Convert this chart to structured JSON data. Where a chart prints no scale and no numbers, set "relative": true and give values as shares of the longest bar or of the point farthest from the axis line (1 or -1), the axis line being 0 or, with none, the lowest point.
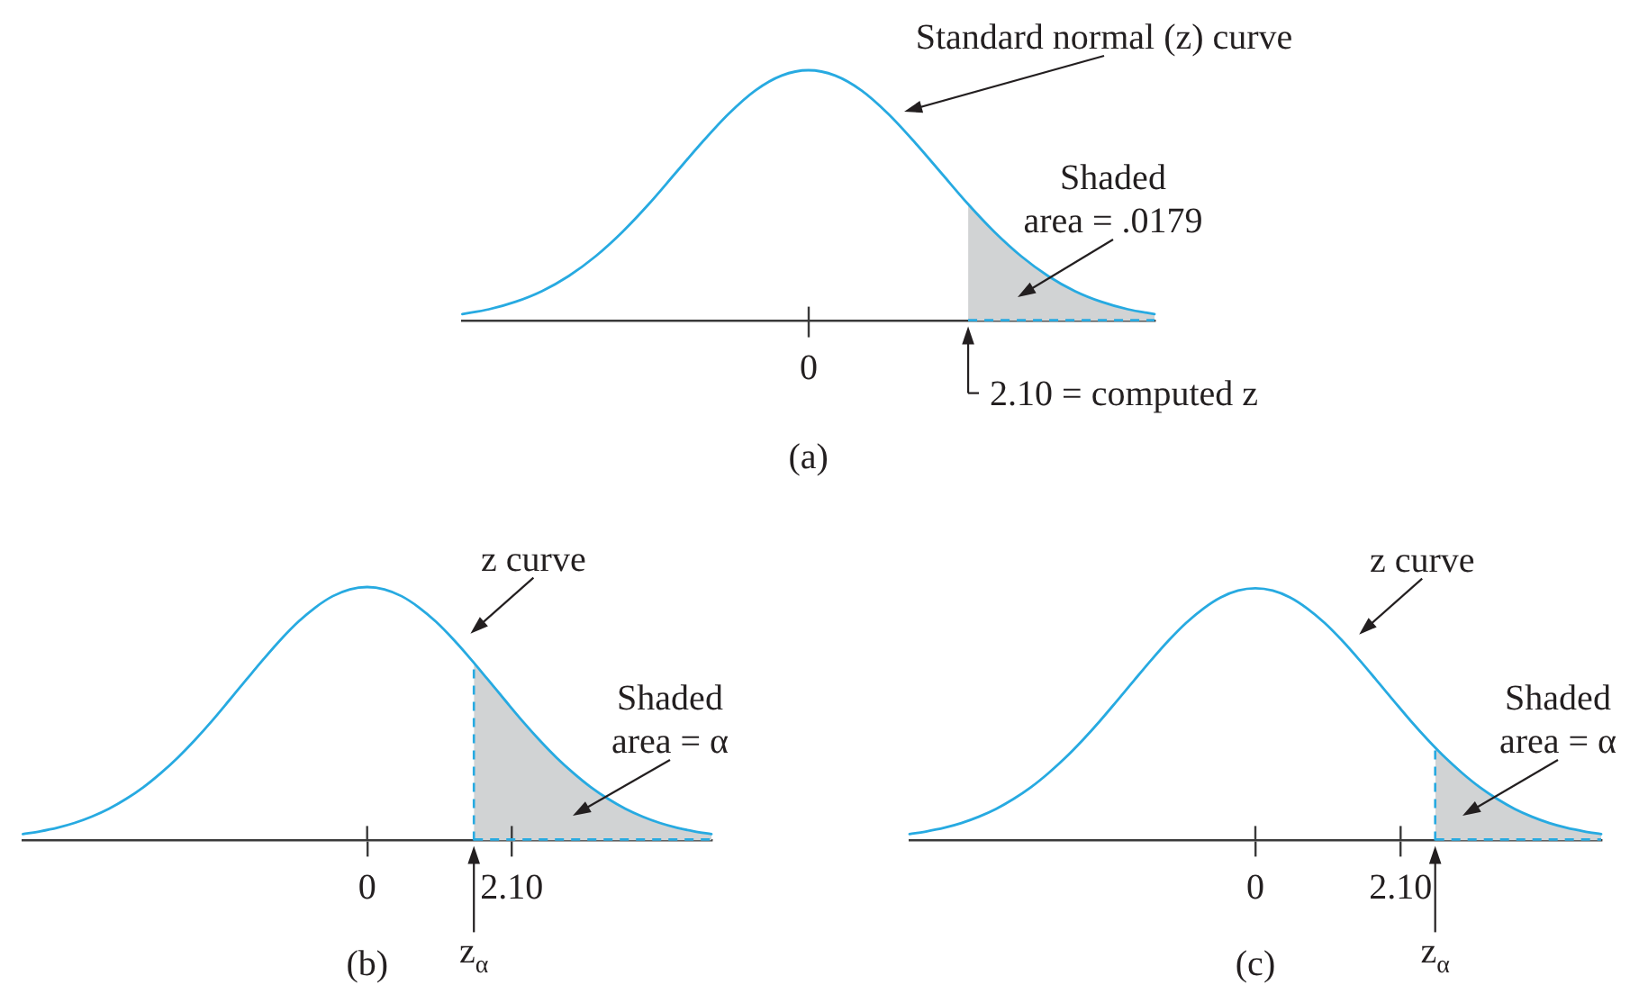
{
  "chart_data": [
    {
      "type": "line",
      "title": "(a)",
      "relative": true,
      "categories": [
        null,
        null,
        null,
        null,
        null,
        null,
        null,
        null,
        null,
        null,
        null,
        null,
        null,
        null,
        null,
        null,
        null,
        null,
        null,
        null,
        null,
        null,
        null,
        null,
        null,
        null,
        null
      ],
      "series": [
        {
          "type": "line",
          "color": "#27aae1",
          "values": [
            0.028,
            0.047,
            0.077,
            0.12,
            0.18,
            0.258,
            0.354,
            0.466,
            0.589,
            0.712,
            0.826,
            0.919,
            0.979,
            1,
            0.979,
            0.919,
            0.826,
            0.712,
            0.589,
            0.466,
            0.354,
            0.258,
            0.18,
            0.12,
            0.077,
            0.047,
            0.028
          ]
        },
        {
          "type": "area",
          "color": "#d1d3d4",
          "line_style": "dashed",
          "values": [
            null,
            null,
            null,
            null,
            null,
            null,
            null,
            null,
            null,
            null,
            null,
            null,
            null,
            null,
            null,
            null,
            null,
            null,
            null,
            0.466,
            0.354,
            0.258,
            0.18,
            0.12,
            0.077,
            0.047,
            0.028
          ]
        }
      ],
      "annotations": [
        "Standard normal (z) curve",
        "Shaded\narea = .0179",
        "2.10 = computed z",
        "0"
      ]
    },
    {
      "type": "line",
      "title": "(b)",
      "relative": true,
      "xlim": [
        -5,
        5
      ],
      "xticks": [
        0,
        {
          "value": 2.1,
          "label": "2.10"
        }
      ],
      "series": [
        {
          "type": "line",
          "color": "#27aae1",
          "x": [
            -5,
            -4.75,
            -4.5,
            -4.25,
            -4,
            -3.75,
            -3.5,
            -3.25,
            -3,
            -2.75,
            -2.5,
            -2.25,
            -2,
            -1.75,
            -1.5,
            -1.25,
            -1,
            -0.75,
            -0.5,
            -0.25,
            0,
            0.25,
            0.5,
            0.75,
            1,
            1.25,
            1.5,
            1.75,
            2,
            2.25,
            2.5,
            2.75,
            3,
            3.25,
            3.5,
            3.75,
            4,
            4.25,
            4.5,
            4.75,
            5
          ],
          "values": [
            0.025,
            0.036,
            0.05,
            0.069,
            0.094,
            0.125,
            0.164,
            0.21,
            0.265,
            0.327,
            0.397,
            0.473,
            0.554,
            0.636,
            0.717,
            0.794,
            0.863,
            0.92,
            0.964,
            0.991,
            1,
            0.991,
            0.964,
            0.92,
            0.863,
            0.794,
            0.717,
            0.636,
            0.554,
            0.473,
            0.397,
            0.327,
            0.265,
            0.21,
            0.164,
            0.125,
            0.094,
            0.069,
            0.05,
            0.036,
            0.025
          ]
        },
        {
          "type": "area",
          "color": "#d1d3d4",
          "line_style": "dashed",
          "x": [
            1.55,
            1.75,
            2,
            2.25,
            2.5,
            2.75,
            3,
            3.25,
            3.5,
            3.75,
            4,
            4.25,
            4.5,
            4.75,
            5
          ],
          "values": [
            0.701,
            0.636,
            0.554,
            0.473,
            0.397,
            0.327,
            0.265,
            0.21,
            0.164,
            0.125,
            0.094,
            0.069,
            0.05,
            0.036,
            0.025
          ]
        }
      ],
      "ref_lines": [
        {
          "axis": "x",
          "value": 1.55,
          "label": "z$_{α}$",
          "color": "#27aae1",
          "line_style": "dashed"
        }
      ],
      "annotations": [
        {
          "text": "z curve",
          "x": 1.5,
          "y": 0.717
        },
        "Shaded\narea = α"
      ]
    },
    {
      "type": "line",
      "title": "(c)",
      "relative": true,
      "xlim": [
        -5,
        5
      ],
      "xticks": [
        0,
        {
          "value": 2.1,
          "label": "2.10"
        }
      ],
      "series": [
        {
          "type": "line",
          "color": "#27aae1",
          "x": [
            -5,
            -4.75,
            -4.5,
            -4.25,
            -4,
            -3.75,
            -3.5,
            -3.25,
            -3,
            -2.75,
            -2.5,
            -2.25,
            -2,
            -1.75,
            -1.5,
            -1.25,
            -1,
            -0.75,
            -0.5,
            -0.25,
            0,
            0.25,
            0.5,
            0.75,
            1,
            1.25,
            1.5,
            1.75,
            2,
            2.25,
            2.5,
            2.75,
            3,
            3.25,
            3.5,
            3.75,
            4,
            4.25,
            4.5,
            4.75,
            5
          ],
          "values": [
            0.025,
            0.036,
            0.05,
            0.069,
            0.094,
            0.125,
            0.164,
            0.21,
            0.265,
            0.327,
            0.397,
            0.473,
            0.554,
            0.636,
            0.717,
            0.794,
            0.863,
            0.92,
            0.964,
            0.991,
            1,
            0.991,
            0.964,
            0.92,
            0.863,
            0.794,
            0.717,
            0.636,
            0.554,
            0.473,
            0.397,
            0.327,
            0.265,
            0.21,
            0.164,
            0.125,
            0.094,
            0.069,
            0.05,
            0.036,
            0.025
          ]
        },
        {
          "type": "area",
          "color": "#d1d3d4",
          "line_style": "dashed",
          "x": [
            2.6,
            2.75,
            3,
            3.25,
            3.5,
            3.75,
            4,
            4.25,
            4.5,
            4.75,
            5
          ],
          "values": [
            0.368,
            0.327,
            0.265,
            0.21,
            0.164,
            0.125,
            0.094,
            0.069,
            0.05,
            0.036,
            0.025
          ]
        }
      ],
      "ref_lines": [
        {
          "axis": "x",
          "value": 2.6,
          "label": "z$_{α}$",
          "color": "#27aae1",
          "line_style": "dashed"
        }
      ],
      "annotations": [
        {
          "text": "z curve",
          "x": 1.5,
          "y": 0.717
        },
        "Shaded\narea = α"
      ]
    }
  ]
}
